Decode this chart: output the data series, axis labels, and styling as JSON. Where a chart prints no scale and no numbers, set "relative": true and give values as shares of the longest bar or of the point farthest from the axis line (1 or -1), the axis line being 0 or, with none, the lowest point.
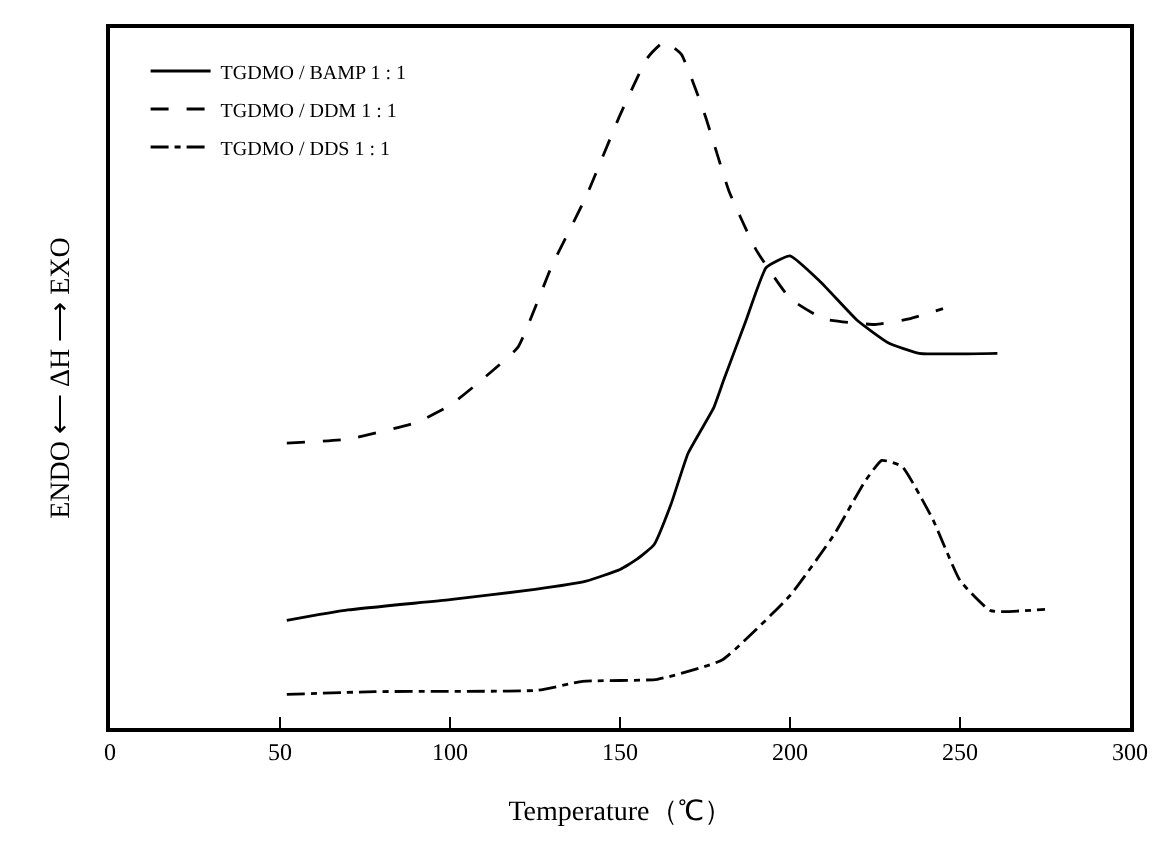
{
  "chart_data": {
    "type": "line",
    "relative": true,
    "xlabel": "Temperature（℃）",
    "ylabel": "ENDO ⟵ ΔH ⟶ EXO",
    "xlim": [
      0,
      300
    ],
    "xticks": [
      0,
      50,
      100,
      150,
      200,
      250,
      300
    ],
    "legend": "top left",
    "marker": "none",
    "series": [
      {
        "name": "TGDMO / BAMP 1 : 1",
        "color": "#000000",
        "line_style": "solid",
        "x": [
          52,
          70,
          100,
          125,
          140,
          150,
          155,
          160,
          165,
          170,
          177.5,
          180.5,
          187,
          193,
          200,
          209,
          220,
          229,
          238,
          261
        ],
        "values": [
          0.157,
          0.172,
          0.187,
          0.202,
          0.214,
          0.231,
          0.246,
          0.267,
          0.326,
          0.4,
          0.466,
          0.507,
          0.593,
          0.671,
          0.688,
          0.65,
          0.593,
          0.561,
          0.546,
          0.546
        ]
      },
      {
        "name": "TGDMO / DDM 1 : 1",
        "color": "#000000",
        "line_style": "dashed",
        "x": [
          52,
          70,
          90,
          100,
          110,
          120,
          130,
          140,
          150,
          158,
          163,
          168,
          175,
          182,
          190,
          200,
          210,
          225,
          235,
          245
        ],
        "values": [
          0.415,
          0.421,
          0.445,
          0.47,
          0.51,
          0.555,
          0.674,
          0.774,
          0.893,
          0.976,
          1.0,
          0.982,
          0.893,
          0.783,
          0.697,
          0.626,
          0.596,
          0.588,
          0.596,
          0.611
        ]
      },
      {
        "name": "TGDMO / DDS 1 : 1",
        "color": "#000000",
        "line_style": "dashdot",
        "x": [
          52,
          78,
          126,
          139,
          161,
          180,
          200,
          213,
          222,
          227,
          233,
          242,
          250,
          259,
          275
        ],
        "values": [
          0.049,
          0.053,
          0.055,
          0.068,
          0.071,
          0.099,
          0.193,
          0.282,
          0.359,
          0.39,
          0.381,
          0.304,
          0.215,
          0.171,
          0.173
        ]
      }
    ]
  }
}
